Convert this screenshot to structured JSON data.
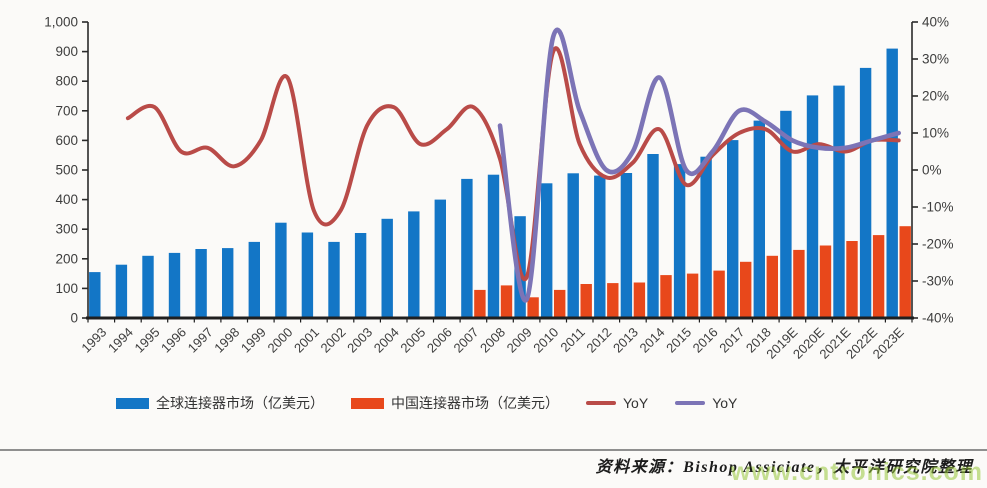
{
  "chart_data": {
    "type": "bar",
    "categories": [
      "1993",
      "1994",
      "1995",
      "1996",
      "1997",
      "1998",
      "1999",
      "2000",
      "2001",
      "2002",
      "2003",
      "2004",
      "2005",
      "2006",
      "2007",
      "2008",
      "2009",
      "2010",
      "2011",
      "2012",
      "2013",
      "2014",
      "2015",
      "2016",
      "2017",
      "2018",
      "2019E",
      "2020E",
      "2021E",
      "2022E",
      "2023E"
    ],
    "series": [
      {
        "name": "全球连接器市场（亿美元）",
        "type": "bar",
        "axis": "left",
        "color": "#1376C6",
        "values": [
          155,
          180,
          210,
          220,
          233,
          236,
          257,
          322,
          289,
          257,
          287,
          335,
          360,
          400,
          470,
          484,
          344,
          455,
          489,
          481,
          490,
          554,
          520,
          545,
          601,
          667,
          700,
          752,
          785,
          845,
          910
        ]
      },
      {
        "name": "中国连接器市场（亿美元）",
        "type": "bar",
        "axis": "left",
        "color": "#E8481B",
        "values": [
          null,
          null,
          null,
          null,
          null,
          null,
          null,
          null,
          null,
          null,
          null,
          null,
          null,
          null,
          95,
          110,
          70,
          95,
          115,
          118,
          120,
          145,
          150,
          160,
          190,
          210,
          230,
          245,
          260,
          280,
          310
        ]
      },
      {
        "name": "YoY",
        "type": "line",
        "axis": "right",
        "color": "#B94B48",
        "values": [
          null,
          14,
          17,
          5,
          6,
          1,
          8,
          25,
          -11,
          -11,
          12,
          17,
          7,
          11,
          17,
          3,
          -29,
          32,
          7,
          -2,
          2,
          11,
          -4,
          4,
          10,
          11,
          5,
          7,
          5,
          8,
          8
        ]
      },
      {
        "name": "YoY",
        "type": "line",
        "axis": "right",
        "color": "#7C74B6",
        "values": [
          null,
          null,
          null,
          null,
          null,
          null,
          null,
          null,
          null,
          null,
          null,
          null,
          null,
          null,
          null,
          12,
          -35,
          36,
          16,
          0,
          5,
          25,
          0,
          5,
          16,
          13,
          8,
          6,
          6,
          8,
          10
        ]
      }
    ],
    "axes": {
      "left": {
        "min": 0,
        "max": 1000,
        "step": 100,
        "tick_labels_top_to_bottom": [
          "1,000",
          "900",
          "800",
          "700",
          "600",
          "500",
          "400",
          "300",
          "200",
          "100",
          "0"
        ]
      },
      "right": {
        "min": -40,
        "max": 40,
        "step": 10,
        "tick_labels_top_to_bottom": [
          "40%",
          "30%",
          "20%",
          "10%",
          "0%",
          "-10%",
          "-20%",
          "-30%",
          "-40%"
        ]
      }
    },
    "grid": false,
    "legend_position": "bottom",
    "title": "",
    "xlabel": "",
    "ylabel": ""
  },
  "legend": {
    "items": [
      {
        "label": "全球连接器市场（亿美元）",
        "color": "#1376C6",
        "shape": "bar"
      },
      {
        "label": "中国连接器市场（亿美元）",
        "color": "#E8481B",
        "shape": "bar"
      },
      {
        "label": "YoY",
        "color": "#B94B48",
        "shape": "line"
      },
      {
        "label": "YoY",
        "color": "#7C74B6",
        "shape": "line"
      }
    ]
  },
  "footer": {
    "source_text": "资料来源：Bishop Assiciate，太平洋研究院整理",
    "watermark": "www.cntronics.com"
  },
  "style": {
    "axis_color": "#2a2a2a",
    "baseline_color": "#1f1f1f",
    "label_color": "#3d3d3d",
    "background": "#FBFAF8"
  }
}
